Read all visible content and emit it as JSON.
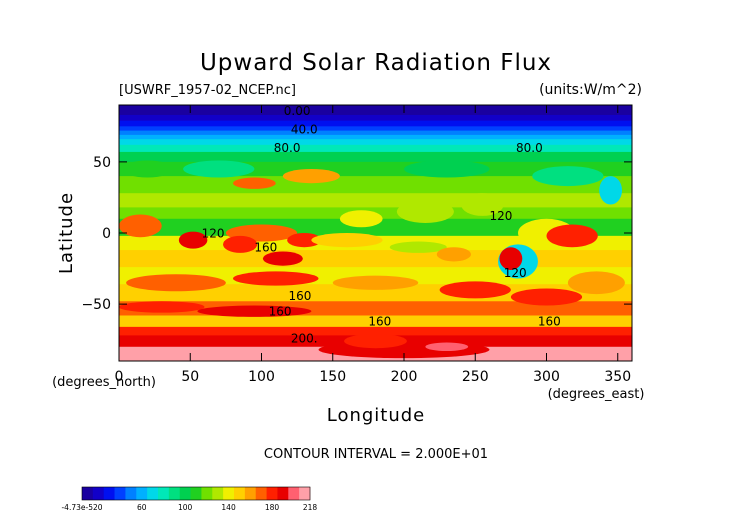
{
  "chart_data": {
    "type": "heatmap",
    "title": "Upward Solar Radiation Flux",
    "file_label": "[USWRF_1957-02_NCEP.nc]",
    "units_label": "(units:W/m^2)",
    "xlabel": "Longitude",
    "ylabel": "Latitude",
    "x_unit_label": "(degrees_east)",
    "y_unit_label": "(degrees_north)",
    "xlim": [
      0,
      360
    ],
    "ylim": [
      -90,
      90
    ],
    "x_ticks": [
      0,
      50,
      100,
      150,
      200,
      250,
      300,
      350
    ],
    "y_ticks": [
      50,
      0,
      -50
    ],
    "contour_interval_text": "CONTOUR INTERVAL = 2.000E+01",
    "contour_labels": [
      {
        "text": "0.00",
        "lon": 125,
        "lat": 83
      },
      {
        "text": "40.0",
        "lon": 130,
        "lat": 70
      },
      {
        "text": "80.0",
        "lon": 118,
        "lat": 57
      },
      {
        "text": "80.0",
        "lon": 288,
        "lat": 57
      },
      {
        "text": "120",
        "lon": 268,
        "lat": 9
      },
      {
        "text": "120",
        "lon": 66,
        "lat": -3
      },
      {
        "text": "160",
        "lon": 103,
        "lat": -13
      },
      {
        "text": "160",
        "lon": 127,
        "lat": -47
      },
      {
        "text": "160",
        "lon": 113,
        "lat": -58
      },
      {
        "text": "160",
        "lon": 183,
        "lat": -65
      },
      {
        "text": "160",
        "lon": 302,
        "lat": -65
      },
      {
        "text": "200.",
        "lon": 130,
        "lat": -77
      },
      {
        "text": "120",
        "lon": 278,
        "lat": -31
      }
    ],
    "colorbar": {
      "tick_labels": [
        "-4.73e-520",
        "60",
        "100",
        "140",
        "180",
        "218"
      ],
      "min": 0,
      "max": 218,
      "colors": [
        "#1a00a0",
        "#1200c8",
        "#0010f0",
        "#0040ff",
        "#0080ff",
        "#00b0ff",
        "#00d8e8",
        "#00e8b8",
        "#00e080",
        "#00d050",
        "#20d020",
        "#70e000",
        "#b0e800",
        "#f0f000",
        "#ffd000",
        "#ffa000",
        "#ff6000",
        "#ff2000",
        "#e80000",
        "#ff6070",
        "#ffa0a8"
      ]
    }
  }
}
